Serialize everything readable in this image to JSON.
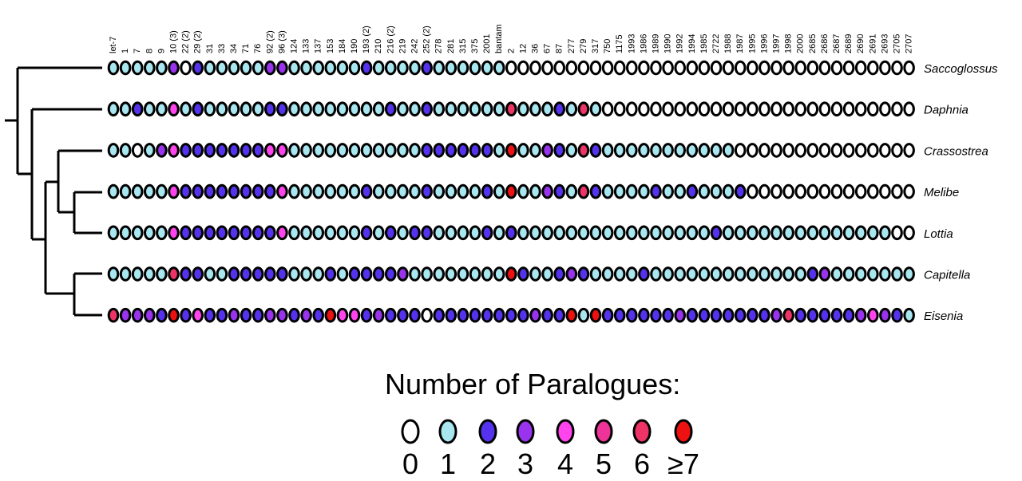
{
  "columns": [
    "let-7",
    "1",
    "7",
    "8",
    "9",
    "10 (3)",
    "22 (2)",
    "29 (2)",
    "31",
    "33",
    "34",
    "71",
    "76",
    "92 (2)",
    "96 (3)",
    "124",
    "133",
    "137",
    "153",
    "184",
    "190",
    "193 (2)",
    "210",
    "216 (2)",
    "219",
    "242",
    "252 (2)",
    "278",
    "281",
    "315",
    "375",
    "2001",
    "bantam",
    "2",
    "12",
    "36",
    "67",
    "87",
    "277",
    "279",
    "317",
    "750",
    "1175",
    "1993",
    "1986",
    "1989",
    "1990",
    "1992",
    "1994",
    "1985",
    "2722",
    "1988",
    "1987",
    "1995",
    "1996",
    "1997",
    "1998",
    "2000",
    "2685",
    "2686",
    "2687",
    "2689",
    "2690",
    "2691",
    "2693",
    "2705",
    "2707"
  ],
  "species": [
    "Saccoglossus",
    "Daphnia",
    "Crassostrea",
    "Melibe",
    "Lottia",
    "Capitella",
    "Eisenia"
  ],
  "colors": [
    "#ffffff",
    "#a8e6f0",
    "#5533ee",
    "#9933ee",
    "#ff44ee",
    "#ee3399",
    "#ee3366",
    "#ee1111"
  ],
  "matrix": [
    [
      1,
      1,
      1,
      1,
      1,
      3,
      0,
      2,
      1,
      1,
      1,
      1,
      1,
      3,
      3,
      1,
      1,
      1,
      1,
      1,
      1,
      2,
      1,
      1,
      1,
      1,
      2,
      1,
      1,
      1,
      1,
      1,
      1,
      0,
      0,
      0,
      0,
      0,
      0,
      0,
      0,
      0,
      0,
      0,
      0,
      0,
      0,
      0,
      0,
      0,
      0,
      0,
      0,
      0,
      0,
      0,
      0,
      0,
      0,
      0,
      0,
      0,
      0,
      0,
      0,
      0,
      0
    ],
    [
      1,
      1,
      2,
      1,
      1,
      4,
      1,
      2,
      1,
      1,
      1,
      1,
      1,
      2,
      2,
      1,
      1,
      1,
      1,
      1,
      1,
      1,
      1,
      2,
      1,
      1,
      2,
      1,
      1,
      1,
      1,
      1,
      1,
      6,
      1,
      1,
      1,
      2,
      1,
      6,
      1,
      0,
      0,
      0,
      0,
      0,
      0,
      0,
      0,
      0,
      0,
      0,
      0,
      0,
      0,
      0,
      0,
      0,
      0,
      0,
      0,
      0,
      0,
      0,
      0,
      0,
      0
    ],
    [
      1,
      1,
      0,
      1,
      3,
      4,
      2,
      2,
      2,
      2,
      2,
      2,
      2,
      4,
      4,
      1,
      1,
      1,
      1,
      1,
      1,
      1,
      1,
      1,
      1,
      1,
      2,
      2,
      2,
      2,
      2,
      2,
      1,
      7,
      1,
      1,
      3,
      2,
      1,
      6,
      2,
      1,
      1,
      1,
      1,
      1,
      1,
      1,
      1,
      1,
      1,
      1,
      0,
      0,
      0,
      0,
      0,
      0,
      0,
      0,
      0,
      0,
      0,
      0,
      0,
      0,
      0
    ],
    [
      1,
      1,
      1,
      1,
      1,
      4,
      2,
      2,
      2,
      2,
      2,
      2,
      2,
      2,
      4,
      1,
      1,
      1,
      1,
      1,
      1,
      2,
      1,
      1,
      1,
      1,
      2,
      1,
      1,
      1,
      1,
      2,
      1,
      7,
      1,
      1,
      3,
      2,
      1,
      6,
      2,
      1,
      1,
      1,
      1,
      2,
      1,
      1,
      2,
      1,
      1,
      1,
      2,
      0,
      0,
      0,
      0,
      0,
      0,
      0,
      0,
      0,
      0,
      0,
      0,
      0,
      0
    ],
    [
      1,
      1,
      1,
      1,
      1,
      4,
      2,
      2,
      2,
      2,
      2,
      2,
      2,
      2,
      4,
      1,
      1,
      1,
      1,
      1,
      1,
      2,
      1,
      2,
      1,
      2,
      2,
      1,
      1,
      1,
      1,
      2,
      1,
      2,
      1,
      1,
      1,
      1,
      1,
      1,
      1,
      1,
      1,
      1,
      1,
      1,
      1,
      1,
      1,
      1,
      2,
      1,
      1,
      1,
      1,
      1,
      1,
      1,
      1,
      1,
      1,
      1,
      1,
      1,
      1,
      0,
      0
    ],
    [
      1,
      1,
      1,
      1,
      1,
      6,
      2,
      2,
      1,
      1,
      2,
      2,
      2,
      2,
      2,
      1,
      1,
      1,
      2,
      1,
      2,
      2,
      2,
      2,
      3,
      1,
      1,
      1,
      1,
      1,
      1,
      1,
      1,
      7,
      2,
      1,
      1,
      2,
      3,
      2,
      1,
      1,
      1,
      1,
      2,
      1,
      1,
      1,
      1,
      1,
      1,
      1,
      1,
      1,
      1,
      1,
      1,
      1,
      2,
      3,
      1,
      1,
      1,
      1,
      1,
      1,
      1
    ],
    [
      6,
      3,
      3,
      3,
      2,
      7,
      2,
      4,
      2,
      2,
      3,
      2,
      2,
      3,
      3,
      2,
      3,
      2,
      7,
      4,
      4,
      2,
      3,
      2,
      2,
      2,
      0,
      2,
      2,
      2,
      2,
      2,
      2,
      2,
      2,
      3,
      2,
      2,
      7,
      1,
      7,
      2,
      2,
      2,
      2,
      2,
      2,
      3,
      2,
      2,
      2,
      2,
      2,
      2,
      2,
      3,
      6,
      2,
      2,
      2,
      2,
      2,
      3,
      4,
      3,
      2,
      1
    ]
  ],
  "legend": {
    "title": "Number of Paralogues:",
    "labels": [
      "0",
      "1",
      "2",
      "3",
      "4",
      "5",
      "6",
      "≥7"
    ]
  }
}
